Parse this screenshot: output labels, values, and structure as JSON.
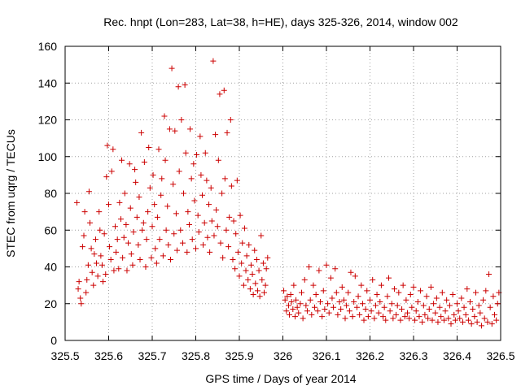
{
  "chart_data": {
    "type": "scatter",
    "title": "Rec. hnpt (Lon=283, Lat=38, h=HE), days 325-326, 2014, window 002",
    "xlabel": "GPS time / Days of year 2014",
    "ylabel": "STEC from uqrg / TECUs",
    "xlim": [
      325.5,
      326.5
    ],
    "ylim": [
      0,
      160
    ],
    "x_ticks": [
      325.5,
      325.6,
      325.7,
      325.8,
      325.9,
      326.0,
      326.1,
      326.2,
      326.3,
      326.4,
      326.5
    ],
    "x_tick_labels": [
      "325.5",
      "325.6",
      "325.7",
      "325.8",
      "325.9",
      "326",
      "326.1",
      "326.2",
      "326.3",
      "326.4",
      "326.5"
    ],
    "y_ticks": [
      0,
      20,
      40,
      60,
      80,
      100,
      120,
      140,
      160
    ],
    "y_tick_labels": [
      "0",
      "20",
      "40",
      "60",
      "80",
      "100",
      "120",
      "140",
      "160"
    ],
    "grid": true,
    "marker": "+",
    "color": "#cc0000",
    "points": [
      [
        325.527,
        75
      ],
      [
        325.53,
        28
      ],
      [
        325.532,
        32
      ],
      [
        325.535,
        23
      ],
      [
        325.537,
        20
      ],
      [
        325.54,
        51
      ],
      [
        325.543,
        57
      ],
      [
        325.545,
        70
      ],
      [
        325.548,
        26
      ],
      [
        325.55,
        33
      ],
      [
        325.553,
        41
      ],
      [
        325.555,
        81
      ],
      [
        325.557,
        64
      ],
      [
        325.56,
        50
      ],
      [
        325.562,
        37
      ],
      [
        325.565,
        30
      ],
      [
        325.567,
        47
      ],
      [
        325.57,
        55
      ],
      [
        325.572,
        42
      ],
      [
        325.575,
        35
      ],
      [
        325.578,
        70
      ],
      [
        325.58,
        60
      ],
      [
        325.582,
        46
      ],
      [
        325.585,
        41
      ],
      [
        325.587,
        32
      ],
      [
        325.59,
        58
      ],
      [
        325.593,
        36
      ],
      [
        325.595,
        89
      ],
      [
        325.597,
        106
      ],
      [
        325.6,
        74
      ],
      [
        325.602,
        51
      ],
      [
        325.605,
        44
      ],
      [
        325.607,
        92
      ],
      [
        325.61,
        104
      ],
      [
        325.612,
        38
      ],
      [
        325.615,
        62
      ],
      [
        325.617,
        48
      ],
      [
        325.62,
        55
      ],
      [
        325.623,
        39
      ],
      [
        325.625,
        75
      ],
      [
        325.628,
        66
      ],
      [
        325.63,
        98
      ],
      [
        325.632,
        45
      ],
      [
        325.635,
        56
      ],
      [
        325.637,
        80
      ],
      [
        325.64,
        63
      ],
      [
        325.642,
        38
      ],
      [
        325.645,
        53
      ],
      [
        325.648,
        96
      ],
      [
        325.65,
        72
      ],
      [
        325.652,
        47
      ],
      [
        325.655,
        41
      ],
      [
        325.657,
        59
      ],
      [
        325.66,
        93
      ],
      [
        325.662,
        86
      ],
      [
        325.665,
        67
      ],
      [
        325.668,
        52
      ],
      [
        325.67,
        78
      ],
      [
        325.672,
        44
      ],
      [
        325.675,
        113
      ],
      [
        325.677,
        60
      ],
      [
        325.68,
        64
      ],
      [
        325.682,
        97
      ],
      [
        325.685,
        40
      ],
      [
        325.687,
        55
      ],
      [
        325.69,
        70
      ],
      [
        325.692,
        105
      ],
      [
        325.695,
        83
      ],
      [
        325.698,
        45
      ],
      [
        325.7,
        62
      ],
      [
        325.702,
        90
      ],
      [
        325.705,
        74
      ],
      [
        325.707,
        50
      ],
      [
        325.71,
        42
      ],
      [
        325.712,
        67
      ],
      [
        325.715,
        104
      ],
      [
        325.717,
        55
      ],
      [
        325.72,
        79
      ],
      [
        325.722,
        88
      ],
      [
        325.725,
        46
      ],
      [
        325.728,
        122
      ],
      [
        325.73,
        98
      ],
      [
        325.732,
        60
      ],
      [
        325.735,
        73
      ],
      [
        325.737,
        52
      ],
      [
        325.74,
        115
      ],
      [
        325.742,
        44
      ],
      [
        325.745,
        148
      ],
      [
        325.748,
        85
      ],
      [
        325.75,
        58
      ],
      [
        325.752,
        114
      ],
      [
        325.755,
        69
      ],
      [
        325.757,
        49
      ],
      [
        325.76,
        138
      ],
      [
        325.762,
        92
      ],
      [
        325.765,
        60
      ],
      [
        325.767,
        120
      ],
      [
        325.77,
        53
      ],
      [
        325.772,
        80
      ],
      [
        325.775,
        139
      ],
      [
        325.777,
        102
      ],
      [
        325.78,
        48
      ],
      [
        325.782,
        70
      ],
      [
        325.785,
        63
      ],
      [
        325.787,
        115
      ],
      [
        325.79,
        88
      ],
      [
        325.792,
        55
      ],
      [
        325.795,
        96
      ],
      [
        325.797,
        76
      ],
      [
        325.8,
        50
      ],
      [
        325.802,
        101
      ],
      [
        325.805,
        68
      ],
      [
        325.807,
        59
      ],
      [
        325.81,
        111
      ],
      [
        325.812,
        90
      ],
      [
        325.815,
        79
      ],
      [
        325.817,
        52
      ],
      [
        325.82,
        64
      ],
      [
        325.822,
        102
      ],
      [
        325.825,
        87
      ],
      [
        325.827,
        56
      ],
      [
        325.83,
        74
      ],
      [
        325.832,
        48
      ],
      [
        325.835,
        83
      ],
      [
        325.837,
        65
      ],
      [
        325.84,
        152
      ],
      [
        325.842,
        57
      ],
      [
        325.845,
        112
      ],
      [
        325.847,
        71
      ],
      [
        325.85,
        62
      ],
      [
        325.852,
        98
      ],
      [
        325.855,
        134
      ],
      [
        325.857,
        53
      ],
      [
        325.86,
        80
      ],
      [
        325.862,
        45
      ],
      [
        325.865,
        136
      ],
      [
        325.867,
        88
      ],
      [
        325.87,
        60
      ],
      [
        325.872,
        113
      ],
      [
        325.875,
        51
      ],
      [
        325.877,
        67
      ],
      [
        325.88,
        120
      ],
      [
        325.882,
        84
      ],
      [
        325.885,
        44
      ],
      [
        325.887,
        65
      ],
      [
        325.89,
        39
      ],
      [
        325.892,
        58
      ],
      [
        325.895,
        87
      ],
      [
        325.897,
        48
      ],
      [
        325.9,
        35
      ],
      [
        325.902,
        68
      ],
      [
        325.905,
        42
      ],
      [
        325.907,
        53
      ],
      [
        325.91,
        30
      ],
      [
        325.912,
        61
      ],
      [
        325.915,
        38
      ],
      [
        325.917,
        46
      ],
      [
        325.92,
        33
      ],
      [
        325.922,
        52
      ],
      [
        325.925,
        28
      ],
      [
        325.927,
        41
      ],
      [
        325.93,
        36
      ],
      [
        325.932,
        25
      ],
      [
        325.935,
        49
      ],
      [
        325.937,
        31
      ],
      [
        325.94,
        44
      ],
      [
        325.942,
        27
      ],
      [
        325.945,
        38
      ],
      [
        325.947,
        24
      ],
      [
        325.95,
        57
      ],
      [
        325.952,
        33
      ],
      [
        325.955,
        42
      ],
      [
        325.957,
        26
      ],
      [
        325.96,
        30
      ],
      [
        325.962,
        39
      ],
      [
        325.965,
        45
      ],
      [
        326.002,
        27
      ],
      [
        326.005,
        22
      ],
      [
        326.008,
        16
      ],
      [
        326.01,
        24
      ],
      [
        326.013,
        19
      ],
      [
        326.015,
        14
      ],
      [
        326.018,
        25
      ],
      [
        326.02,
        21
      ],
      [
        326.023,
        17
      ],
      [
        326.025,
        30
      ],
      [
        326.028,
        13
      ],
      [
        326.03,
        22
      ],
      [
        326.033,
        18
      ],
      [
        326.036,
        15
      ],
      [
        326.04,
        20
      ],
      [
        326.043,
        26
      ],
      [
        326.046,
        12
      ],
      [
        326.05,
        33
      ],
      [
        326.053,
        19
      ],
      [
        326.056,
        16
      ],
      [
        326.06,
        40
      ],
      [
        326.063,
        22
      ],
      [
        326.066,
        14
      ],
      [
        326.07,
        30
      ],
      [
        326.073,
        18
      ],
      [
        326.076,
        25
      ],
      [
        326.08,
        16
      ],
      [
        326.083,
        38
      ],
      [
        326.086,
        21
      ],
      [
        326.09,
        13
      ],
      [
        326.093,
        27
      ],
      [
        326.096,
        17
      ],
      [
        326.1,
        41
      ],
      [
        326.103,
        20
      ],
      [
        326.106,
        15
      ],
      [
        326.11,
        34
      ],
      [
        326.113,
        23
      ],
      [
        326.116,
        18
      ],
      [
        326.12,
        39
      ],
      [
        326.123,
        26
      ],
      [
        326.126,
        14
      ],
      [
        326.13,
        21
      ],
      [
        326.133,
        17
      ],
      [
        326.136,
        29
      ],
      [
        326.14,
        22
      ],
      [
        326.143,
        12
      ],
      [
        326.146,
        19
      ],
      [
        326.15,
        26
      ],
      [
        326.153,
        16
      ],
      [
        326.156,
        37
      ],
      [
        326.16,
        13
      ],
      [
        326.163,
        21
      ],
      [
        326.166,
        35
      ],
      [
        326.17,
        18
      ],
      [
        326.173,
        24
      ],
      [
        326.176,
        14
      ],
      [
        326.18,
        30
      ],
      [
        326.183,
        20
      ],
      [
        326.186,
        11
      ],
      [
        326.19,
        17
      ],
      [
        326.193,
        27
      ],
      [
        326.196,
        13
      ],
      [
        326.2,
        22
      ],
      [
        326.203,
        16
      ],
      [
        326.206,
        33
      ],
      [
        326.21,
        12
      ],
      [
        326.213,
        19
      ],
      [
        326.216,
        25
      ],
      [
        326.22,
        15
      ],
      [
        326.223,
        21
      ],
      [
        326.226,
        30
      ],
      [
        326.23,
        13
      ],
      [
        326.233,
        18
      ],
      [
        326.236,
        11
      ],
      [
        326.24,
        24
      ],
      [
        326.243,
        34
      ],
      [
        326.246,
        16
      ],
      [
        326.25,
        20
      ],
      [
        326.253,
        12
      ],
      [
        326.256,
        28
      ],
      [
        326.26,
        14
      ],
      [
        326.263,
        19
      ],
      [
        326.266,
        26
      ],
      [
        326.27,
        11
      ],
      [
        326.273,
        17
      ],
      [
        326.276,
        30
      ],
      [
        326.28,
        13
      ],
      [
        326.283,
        22
      ],
      [
        326.286,
        15
      ],
      [
        326.29,
        12
      ],
      [
        326.293,
        25
      ],
      [
        326.296,
        18
      ],
      [
        326.3,
        29
      ],
      [
        326.303,
        11
      ],
      [
        326.306,
        16
      ],
      [
        326.31,
        21
      ],
      [
        326.313,
        13
      ],
      [
        326.316,
        27
      ],
      [
        326.32,
        10
      ],
      [
        326.323,
        19
      ],
      [
        326.326,
        14
      ],
      [
        326.33,
        24
      ],
      [
        326.333,
        12
      ],
      [
        326.336,
        17
      ],
      [
        326.34,
        29
      ],
      [
        326.343,
        11
      ],
      [
        326.346,
        20
      ],
      [
        326.35,
        15
      ],
      [
        326.353,
        23
      ],
      [
        326.356,
        10
      ],
      [
        326.36,
        18
      ],
      [
        326.363,
        13
      ],
      [
        326.366,
        26
      ],
      [
        326.37,
        11
      ],
      [
        326.373,
        16
      ],
      [
        326.376,
        22
      ],
      [
        326.38,
        12
      ],
      [
        326.383,
        19
      ],
      [
        326.386,
        9
      ],
      [
        326.39,
        25
      ],
      [
        326.393,
        14
      ],
      [
        326.396,
        11
      ],
      [
        326.4,
        20
      ],
      [
        326.403,
        16
      ],
      [
        326.406,
        12
      ],
      [
        326.41,
        23
      ],
      [
        326.413,
        10
      ],
      [
        326.416,
        18
      ],
      [
        326.42,
        14
      ],
      [
        326.423,
        28
      ],
      [
        326.426,
        11
      ],
      [
        326.43,
        21
      ],
      [
        326.433,
        9
      ],
      [
        326.436,
        17
      ],
      [
        326.44,
        13
      ],
      [
        326.443,
        26
      ],
      [
        326.446,
        10
      ],
      [
        326.45,
        19
      ],
      [
        326.453,
        15
      ],
      [
        326.456,
        8
      ],
      [
        326.46,
        22
      ],
      [
        326.463,
        12
      ],
      [
        326.466,
        27
      ],
      [
        326.47,
        10
      ],
      [
        326.473,
        36
      ],
      [
        326.476,
        18
      ],
      [
        326.48,
        9
      ],
      [
        326.483,
        24
      ],
      [
        326.486,
        14
      ],
      [
        326.49,
        11
      ],
      [
        326.493,
        20
      ],
      [
        326.496,
        26
      ]
    ]
  }
}
